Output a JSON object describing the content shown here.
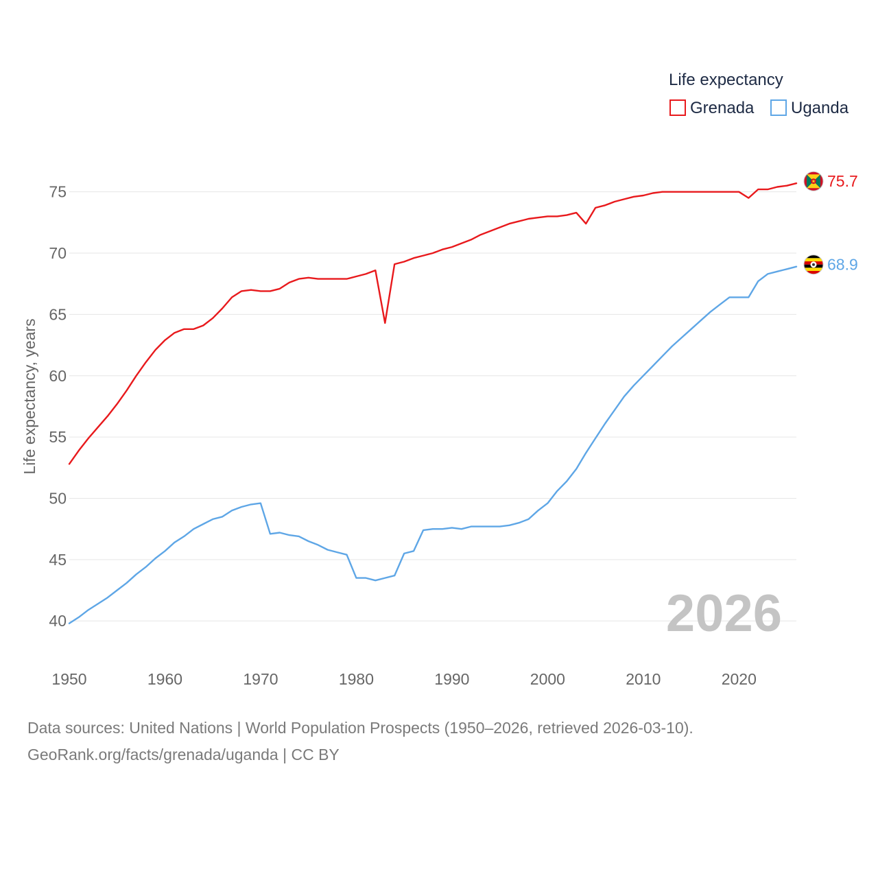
{
  "chart_data": {
    "type": "line",
    "title": "",
    "legend_title": "Life expectancy",
    "legend_position": "top-right",
    "ylabel": "Life expectancy, years",
    "xlabel": "",
    "xlim": [
      1950,
      2026
    ],
    "ylim": [
      38.5,
      77.5
    ],
    "xticks": [
      1950,
      1960,
      1970,
      1980,
      1990,
      2000,
      2010,
      2020
    ],
    "yticks": [
      40,
      45,
      50,
      55,
      60,
      65,
      70,
      75
    ],
    "grid": true,
    "current_year_label": "2026",
    "x": [
      1950,
      1951,
      1952,
      1953,
      1954,
      1955,
      1956,
      1957,
      1958,
      1959,
      1960,
      1961,
      1962,
      1963,
      1964,
      1965,
      1966,
      1967,
      1968,
      1969,
      1970,
      1971,
      1972,
      1973,
      1974,
      1975,
      1976,
      1977,
      1978,
      1979,
      1980,
      1981,
      1982,
      1983,
      1984,
      1985,
      1986,
      1987,
      1988,
      1989,
      1990,
      1991,
      1992,
      1993,
      1994,
      1995,
      1996,
      1997,
      1998,
      1999,
      2000,
      2001,
      2002,
      2003,
      2004,
      2005,
      2006,
      2007,
      2008,
      2009,
      2010,
      2011,
      2012,
      2013,
      2014,
      2015,
      2016,
      2017,
      2018,
      2019,
      2020,
      2021,
      2022,
      2023,
      2024,
      2025,
      2026
    ],
    "series": [
      {
        "name": "Grenada",
        "color": "#e8191c",
        "end_label": "75.7",
        "flag": "grenada-flag",
        "values": [
          52.8,
          53.9,
          54.9,
          55.8,
          56.7,
          57.7,
          58.8,
          60.0,
          61.1,
          62.1,
          62.9,
          63.5,
          63.8,
          63.8,
          64.1,
          64.7,
          65.5,
          66.4,
          66.9,
          67.0,
          66.9,
          66.9,
          67.1,
          67.6,
          67.9,
          68.0,
          67.9,
          67.9,
          67.9,
          67.9,
          68.1,
          68.3,
          68.6,
          64.3,
          69.1,
          69.3,
          69.6,
          69.8,
          70.0,
          70.3,
          70.5,
          70.8,
          71.1,
          71.5,
          71.8,
          72.1,
          72.4,
          72.6,
          72.8,
          72.9,
          73.0,
          73.0,
          73.1,
          73.3,
          72.4,
          73.7,
          73.9,
          74.2,
          74.4,
          74.6,
          74.7,
          74.9,
          75.0,
          75.0,
          75.0,
          75.0,
          75.0,
          75.0,
          75.0,
          75.0,
          75.0,
          74.5,
          75.2,
          75.2,
          75.4,
          75.5,
          75.7
        ]
      },
      {
        "name": "Uganda",
        "color": "#5ea6e6",
        "end_label": "68.9",
        "flag": "uganda-flag",
        "values": [
          39.8,
          40.3,
          40.9,
          41.4,
          41.9,
          42.5,
          43.1,
          43.8,
          44.4,
          45.1,
          45.7,
          46.4,
          46.9,
          47.5,
          47.9,
          48.3,
          48.5,
          49.0,
          49.3,
          49.5,
          49.6,
          47.1,
          47.2,
          47.0,
          46.9,
          46.5,
          46.2,
          45.8,
          45.6,
          45.4,
          43.5,
          43.5,
          43.3,
          43.5,
          43.7,
          45.5,
          45.7,
          47.4,
          47.5,
          47.5,
          47.6,
          47.5,
          47.7,
          47.7,
          47.7,
          47.7,
          47.8,
          48.0,
          48.3,
          49.0,
          49.6,
          50.6,
          51.4,
          52.4,
          53.7,
          54.9,
          56.1,
          57.2,
          58.3,
          59.2,
          60.0,
          60.8,
          61.6,
          62.4,
          63.1,
          63.8,
          64.5,
          65.2,
          65.8,
          66.4,
          66.4,
          66.4,
          67.7,
          68.3,
          68.5,
          68.7,
          68.9
        ]
      }
    ]
  },
  "footer": {
    "line1": "Data sources: United Nations | World Population Prospects (1950–2026, retrieved 2026-03-10).",
    "line2": "GeoRank.org/facts/grenada/uganda | CC BY"
  }
}
